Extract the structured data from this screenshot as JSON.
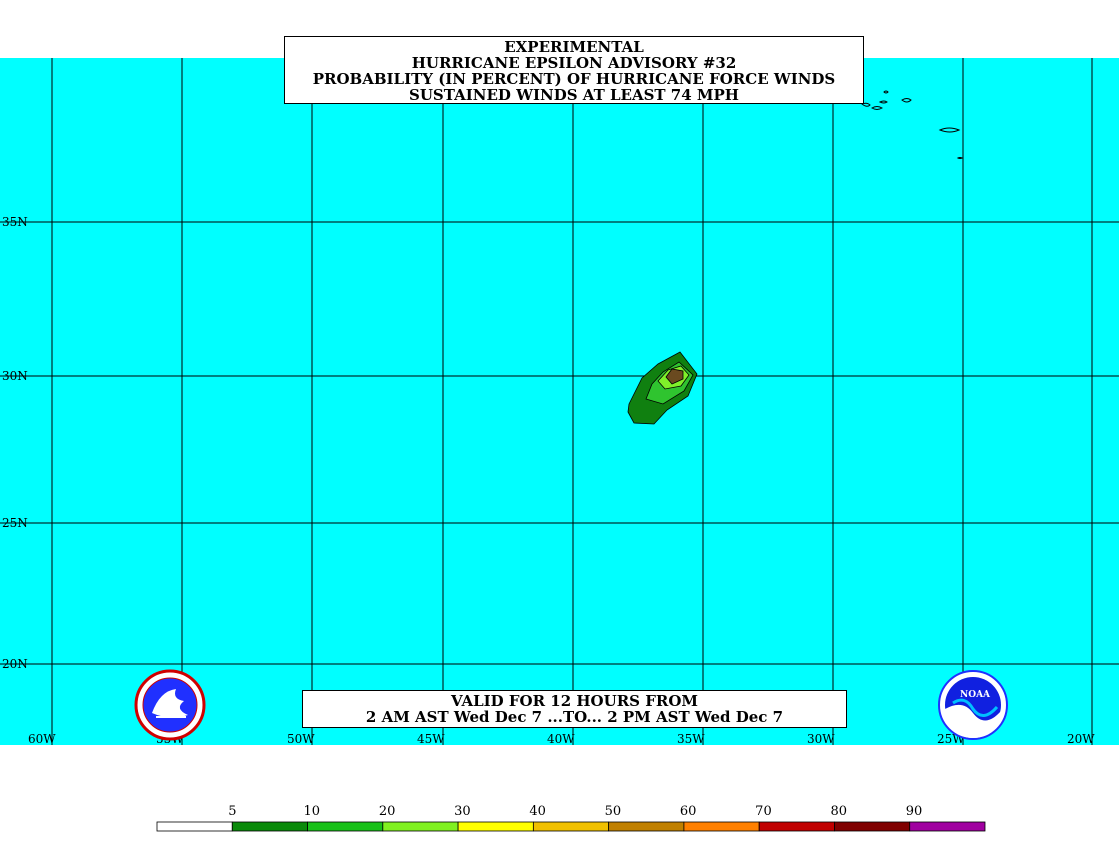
{
  "title": {
    "line1": "EXPERIMENTAL",
    "line2": "HURRICANE EPSILON ADVISORY #32",
    "line3": "PROBABILITY (IN PERCENT) OF HURRICANE FORCE WINDS",
    "line4": "SUSTAINED WINDS AT LEAST 74 MPH"
  },
  "valid": {
    "line1": "VALID FOR 12 HOURS FROM",
    "line2": "2 AM AST Wed Dec 7 ...TO... 2 PM AST Wed Dec 7"
  },
  "map": {
    "ocean_color": "#00ffff",
    "grid_color": "#000000",
    "lat_labels": [
      "35N",
      "30N",
      "25N",
      "20N"
    ],
    "lon_labels": [
      "60W",
      "55W",
      "50W",
      "45W",
      "40W",
      "35W",
      "30W",
      "25W",
      "20W"
    ]
  },
  "probability_area": {
    "outer_5_to_10_color": "#108010",
    "band_10_to_20_color": "#2fc42f",
    "band_20_to_30_color": "#7ff02a",
    "inner_color": "#6a4a20"
  },
  "legend": {
    "tick_labels": [
      "5",
      "10",
      "20",
      "30",
      "40",
      "50",
      "60",
      "70",
      "80",
      "90"
    ],
    "colors": [
      "#ffffff",
      "#0a8a0a",
      "#18c018",
      "#80f020",
      "#ffff00",
      "#f0c000",
      "#c08000",
      "#ff8000",
      "#c00000",
      "#800000",
      "#a000a0"
    ]
  },
  "logos": {
    "left": "nws-logo-icon",
    "right": "noaa-logo-icon",
    "right_text": "NOAA"
  }
}
